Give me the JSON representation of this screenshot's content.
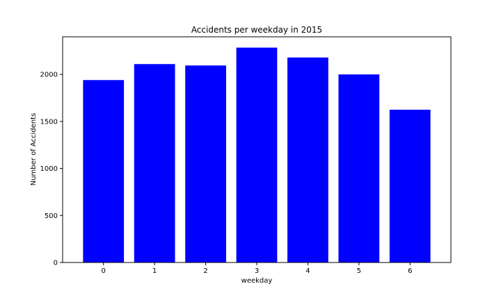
{
  "chart_data": {
    "type": "bar",
    "title": "Accidents per weekday in 2015",
    "xlabel": "weekday",
    "ylabel": "Number of Accidents",
    "categories": [
      "0",
      "1",
      "2",
      "3",
      "4",
      "5",
      "6"
    ],
    "values": [
      1940,
      2110,
      2095,
      2285,
      2180,
      2000,
      1625
    ],
    "ylim": [
      0,
      2400
    ],
    "yticks": [
      0,
      500,
      1000,
      1500,
      2000
    ],
    "bar_color": "#0000ff",
    "grid": false,
    "legend": "none"
  }
}
